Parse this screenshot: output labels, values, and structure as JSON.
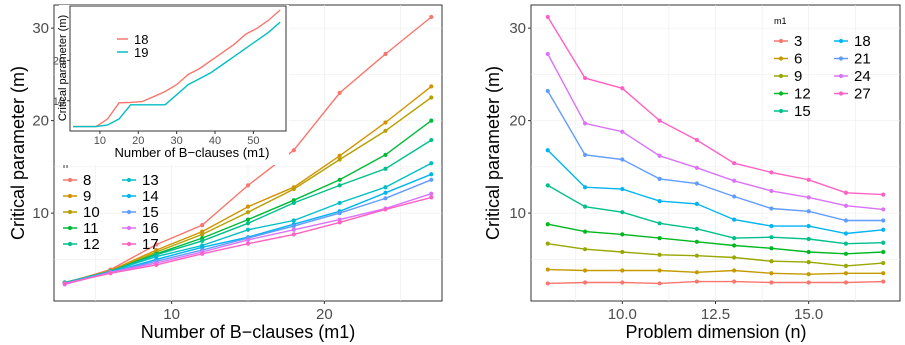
{
  "chart_data": [
    {
      "type": "line",
      "xlabel": "Number of B−clauses (m1)",
      "ylabel": "Critical parameter (m)",
      "xlim": [
        2.3,
        27.7
      ],
      "ylim": [
        0.5,
        32.5
      ],
      "xticks": [
        10,
        20
      ],
      "yticks": [
        10,
        20,
        30
      ],
      "grid": true,
      "legend": {
        "title": "n",
        "placement": "left"
      },
      "x": [
        3,
        6,
        9,
        12,
        15,
        18,
        21,
        24,
        27
      ],
      "series": [
        {
          "name": "8",
          "color": "#F8766D",
          "values": [
            2.4,
            3.9,
            6.6,
            8.7,
            13.0,
            16.8,
            23.0,
            27.2,
            31.2
          ]
        },
        {
          "name": "9",
          "color": "#D39200",
          "values": [
            2.5,
            3.8,
            6.0,
            8.0,
            10.7,
            12.8,
            16.2,
            19.8,
            23.7
          ]
        },
        {
          "name": "10",
          "color": "#B79F00",
          "values": [
            2.5,
            3.7,
            5.8,
            7.7,
            10.1,
            12.6,
            15.8,
            18.9,
            22.5
          ]
        },
        {
          "name": "11",
          "color": "#00BA38",
          "values": [
            2.4,
            3.7,
            5.6,
            7.3,
            9.3,
            11.4,
            13.6,
            16.3,
            20.0
          ]
        },
        {
          "name": "12",
          "color": "#00C08B",
          "values": [
            2.5,
            3.7,
            5.5,
            7.0,
            8.9,
            11.1,
            13.0,
            14.8,
            17.9
          ]
        },
        {
          "name": "13",
          "color": "#00BFC4",
          "values": [
            2.5,
            3.7,
            5.3,
            6.5,
            8.2,
            9.2,
            11.1,
            12.8,
            15.4
          ]
        },
        {
          "name": "14",
          "color": "#00B4F0",
          "values": [
            2.4,
            3.6,
            5.0,
            6.3,
            7.4,
            8.8,
            10.2,
            12.2,
            14.2
          ]
        },
        {
          "name": "15",
          "color": "#619CFF",
          "values": [
            2.4,
            3.6,
            4.8,
            6.0,
            7.3,
            8.6,
            10.0,
            11.6,
            13.6
          ]
        },
        {
          "name": "16",
          "color": "#DB72FB",
          "values": [
            2.3,
            3.6,
            4.6,
            5.8,
            7.1,
            8.2,
            9.3,
            10.5,
            12.1
          ]
        },
        {
          "name": "17",
          "color": "#FF61C3",
          "values": [
            2.4,
            3.5,
            4.4,
            5.6,
            6.7,
            7.7,
            9.0,
            10.4,
            11.7
          ]
        }
      ],
      "inset": {
        "type": "line",
        "xlabel": "Number of B−clauses (m1)",
        "ylabel": "Critical parameter (m)",
        "xlim": [
          2.2,
          58.5
        ],
        "ylim": [
          2.5,
          33.5
        ],
        "xticks": [
          10,
          20,
          30,
          40,
          50
        ],
        "yticks": [
          10,
          20
        ],
        "legend": {
          "title": "",
          "placement": "top-left"
        },
        "x": [
          3,
          6,
          9,
          12,
          15,
          18,
          21,
          24,
          27,
          30,
          33,
          36,
          39,
          42,
          45,
          48,
          51,
          54,
          57
        ],
        "series": [
          {
            "name": "18",
            "color": "#F8766D",
            "values": [
              3.6,
              3.6,
              3.6,
              5.5,
              9.5,
              9.6,
              9.8,
              11.0,
              12.3,
              14.0,
              16.5,
              18.0,
              20.0,
              22.0,
              24.0,
              26.5,
              28.0,
              30.0,
              32.5
            ]
          },
          {
            "name": "19",
            "color": "#00BFC4",
            "values": [
              3.6,
              3.6,
              3.6,
              4.0,
              5.5,
              9.0,
              9.0,
              9.0,
              9.0,
              11.5,
              14.0,
              15.5,
              17.0,
              19.0,
              21.0,
              23.0,
              25.0,
              27.0,
              29.5
            ]
          }
        ]
      }
    },
    {
      "type": "line",
      "xlabel": "Problem dimension (n)",
      "ylabel": "Critical parameter (m)",
      "xlim": [
        7.55,
        17.45
      ],
      "ylim": [
        0.5,
        32.5
      ],
      "xticks": [
        10.0,
        12.5,
        15.0
      ],
      "xtick_labels": [
        "10.0",
        "12.5",
        "15.0"
      ],
      "yticks": [
        10,
        20,
        30
      ],
      "grid": true,
      "legend": {
        "title": "m1",
        "placement": "top-right"
      },
      "x": [
        8,
        9,
        10,
        11,
        12,
        13,
        14,
        15,
        16,
        17
      ],
      "series": [
        {
          "name": "3",
          "color": "#F8766D",
          "values": [
            2.4,
            2.5,
            2.5,
            2.4,
            2.6,
            2.6,
            2.5,
            2.5,
            2.5,
            2.6
          ]
        },
        {
          "name": "6",
          "color": "#C49A00",
          "values": [
            3.9,
            3.8,
            3.8,
            3.8,
            3.6,
            3.8,
            3.5,
            3.4,
            3.5,
            3.5
          ]
        },
        {
          "name": "9",
          "color": "#99A800",
          "values": [
            6.7,
            6.1,
            5.8,
            5.5,
            5.4,
            5.2,
            4.8,
            4.7,
            4.3,
            4.6
          ]
        },
        {
          "name": "12",
          "color": "#00B81F",
          "values": [
            8.8,
            8.0,
            7.7,
            7.3,
            6.9,
            6.5,
            6.2,
            5.8,
            5.6,
            5.8
          ]
        },
        {
          "name": "15",
          "color": "#00C08B",
          "values": [
            13.0,
            10.7,
            10.1,
            8.9,
            8.3,
            7.3,
            7.4,
            7.2,
            6.7,
            6.8
          ]
        },
        {
          "name": "18",
          "color": "#00B4F0",
          "values": [
            16.8,
            12.8,
            12.6,
            11.3,
            11.0,
            9.3,
            8.6,
            8.6,
            7.8,
            8.2
          ]
        },
        {
          "name": "21",
          "color": "#619CFF",
          "values": [
            23.2,
            16.3,
            15.8,
            13.7,
            13.2,
            11.8,
            10.5,
            10.2,
            9.2,
            9.2
          ]
        },
        {
          "name": "24",
          "color": "#DB72FB",
          "values": [
            27.2,
            19.7,
            18.8,
            16.2,
            14.9,
            13.5,
            12.4,
            11.7,
            10.8,
            10.4
          ]
        },
        {
          "name": "27",
          "color": "#FF61C3",
          "values": [
            31.2,
            24.6,
            23.5,
            20.0,
            17.9,
            15.4,
            14.4,
            13.6,
            12.2,
            12.0
          ]
        }
      ]
    }
  ]
}
